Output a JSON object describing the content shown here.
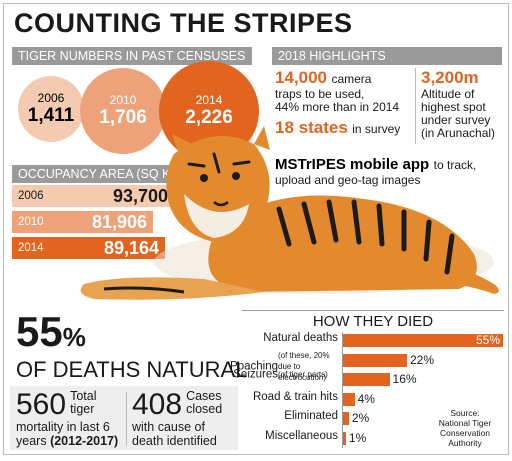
{
  "title": "COUNTING THE STRIPES",
  "censuses": {
    "header": "TIGER NUMBERS IN PAST CENSUSES",
    "items": [
      {
        "year": "2006",
        "value": "1,411"
      },
      {
        "year": "2010",
        "value": "1,706"
      },
      {
        "year": "2014",
        "value": "2,226"
      }
    ]
  },
  "occupancy": {
    "header": "OCCUPANCY AREA (SQ KM)",
    "items": [
      {
        "year": "2006",
        "value": "93,700"
      },
      {
        "year": "2010",
        "value": "81,906"
      },
      {
        "year": "2014",
        "value": "89,164"
      }
    ]
  },
  "highlights": {
    "header": "2018 HIGHLIGHTS",
    "cameras_big": "14,000",
    "cameras_text1": "camera",
    "cameras_text2": "traps to be used,",
    "cameras_text3": "44% more than in 2014",
    "states_big": "18 states",
    "states_text": "in survey",
    "altitude_big": "3,200m",
    "altitude_text1": "Altitude of",
    "altitude_text2": "highest spot",
    "altitude_text3": "under survey",
    "altitude_text4": "(in Arunachal)",
    "app_big": "MSTrIPES mobile app",
    "app_text1": "to track,",
    "app_text2": "upload and geo-tag images"
  },
  "deaths": {
    "percent_num": "55",
    "percent_sign": "%",
    "caption": "OF DEATHS NATURAL",
    "mortality_num": "560",
    "mortality_text1": "Total",
    "mortality_text2": "tiger",
    "mortality_text3": "mortality in last 6",
    "mortality_text4": "years",
    "mortality_years": "(2012-2017)",
    "cases_num": "408",
    "cases_text1": "Cases",
    "cases_text2": "closed",
    "cases_text3": "with cause of",
    "cases_text4": "death identified"
  },
  "source": {
    "line1": "Source:",
    "line2": "National Tiger",
    "line3": "Conservation",
    "line4": "Authority"
  },
  "accent_color": "#e2641f",
  "chart_data": {
    "type": "bar",
    "title": "HOW THEY DIED",
    "categories": [
      "Natural deaths",
      "Poaching",
      "Seizures",
      "Road & train hits",
      "Eliminated",
      "Miscellaneous"
    ],
    "label_notes": [
      "",
      "(of these, 20% due to electrocution)",
      "(of tiger parts)",
      "",
      "",
      ""
    ],
    "values": [
      55,
      22,
      16,
      4,
      2,
      1
    ],
    "value_labels": [
      "55%",
      "22%",
      "16%",
      "4%",
      "2%",
      "1%"
    ],
    "xlim": [
      0,
      55
    ],
    "color": "#e2641f"
  }
}
